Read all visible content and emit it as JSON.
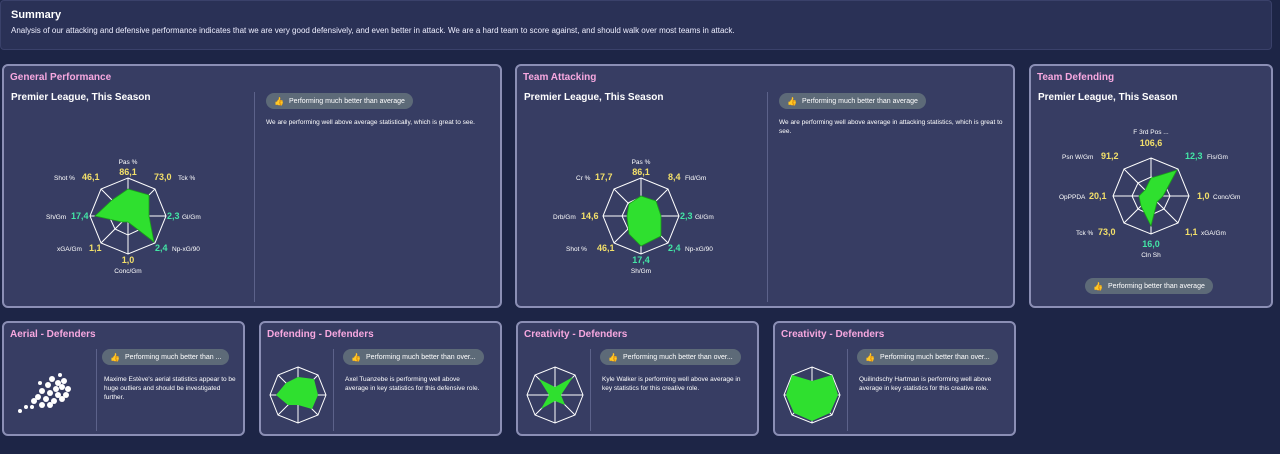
{
  "summary": {
    "title": "Summary",
    "text": "Analysis of our attacking and defensive performance indicates that we are very good defensively, and even better in attack. We are a hard team to score against, and should walk over most teams in attack."
  },
  "general": {
    "title": "General Performance",
    "subtitle": "Premier League, This Season",
    "badge": "Performing much better than average",
    "desc": "We are performing well above average statistically, which is great to see.",
    "stats": [
      {
        "label": "Pas %",
        "value": "86,1"
      },
      {
        "label": "Tck %",
        "value": "73,0"
      },
      {
        "label": "Gl/Gm",
        "value": "2,3"
      },
      {
        "label": "Np-xG/90",
        "value": "2,4"
      },
      {
        "label": "Conc/Gm",
        "value": "1,0"
      },
      {
        "label": "xGA/Gm",
        "value": "1,1"
      },
      {
        "label": "Sh/Gm",
        "value": "17,4"
      },
      {
        "label": "Shot %",
        "value": "46,1"
      }
    ]
  },
  "attacking": {
    "title": "Team Attacking",
    "subtitle": "Premier League, This Season",
    "badge": "Performing much better than average",
    "desc": "We are performing well above average in attacking statistics, which is great to see.",
    "stats": [
      {
        "label": "Pas %",
        "value": "86,1"
      },
      {
        "label": "Fld/Gm",
        "value": "8,4"
      },
      {
        "label": "Gl/Gm",
        "value": "2,3"
      },
      {
        "label": "Np-xG/90",
        "value": "2,4"
      },
      {
        "label": "Sh/Gm",
        "value": "17,4"
      },
      {
        "label": "Shot %",
        "value": "46,1"
      },
      {
        "label": "Drb/Gm",
        "value": "14,6"
      },
      {
        "label": "Cr %",
        "value": "17,7"
      }
    ]
  },
  "defending": {
    "title": "Team Defending",
    "subtitle": "Premier League, This Season",
    "badge": "Performing better than average",
    "stats": [
      {
        "label": "F 3rd Pos ...",
        "value": "106,6"
      },
      {
        "label": "Fls/Gm",
        "value": "12,3"
      },
      {
        "label": "Conc/Gm",
        "value": "1,0"
      },
      {
        "label": "xGA/Gm",
        "value": "1,1"
      },
      {
        "label": "Cln Sh",
        "value": "16,0"
      },
      {
        "label": "Tck %",
        "value": "73,0"
      },
      {
        "label": "OpPPDA",
        "value": "20,1"
      },
      {
        "label": "Psn W/Gm",
        "value": "91,2"
      }
    ]
  },
  "cards": [
    {
      "title": "Aerial - Defenders",
      "badge": "Performing much better than ...",
      "desc": "Maxime Estève's aerial statistics appear to be huge outliers and should be investigated further."
    },
    {
      "title": "Defending - Defenders",
      "badge": "Performing much better than over...",
      "desc": "Axel Tuanzebe is performing well above average in key statistics for this defensive role."
    },
    {
      "title": "Creativity - Defenders",
      "badge": "Performing much better than over...",
      "desc": "Kyle Walker is performing well above average in key statistics for this creative role."
    },
    {
      "title": "Creativity - Defenders",
      "badge": "Performing much better than over...",
      "desc": "Quilindschy Hartman is performing well above average in key statistics for this creative role."
    }
  ],
  "colors": {
    "accent_title": "#f7a8e0",
    "radar_fill": "#2fe02f",
    "value_yellow": "#f3e06a",
    "value_green": "#43e6a6"
  },
  "icons": {
    "badge": "thumbs-up-icon"
  }
}
